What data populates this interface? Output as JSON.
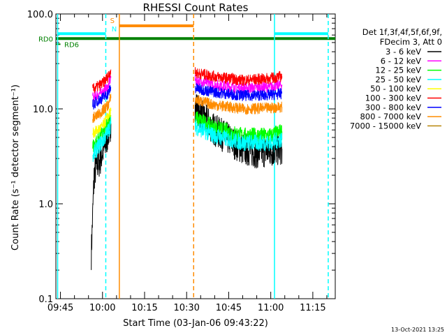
{
  "chart_data": {
    "type": "line",
    "title": "RHESSI Count Rates",
    "xlabel": "Start Time (03-Jan-06 09:43:22)",
    "ylabel": "Count Rate (s⁻¹ detector segment⁻¹)",
    "yscale": "log",
    "ylim": [
      0.1,
      100.0
    ],
    "xlim": [
      "09:43:22",
      "11:23:00"
    ],
    "x_tick_labels": [
      "09:45",
      "10:00",
      "10:15",
      "10:30",
      "10:45",
      "11:00",
      "11:15"
    ],
    "y_tick_labels": [
      "0.1",
      "1.0",
      "10.0",
      "100.0"
    ],
    "y_tick_values": [
      0.1,
      1.0,
      10.0,
      100.0
    ],
    "legend_header": [
      "Det 1f,3f,4f,5f,6f,9f,",
      "FDecim 3, Att 0"
    ],
    "legend_position": "right",
    "series": [
      {
        "name": "3 - 6 keV",
        "color": "#000000",
        "x": [
          "09:56:00",
          "09:57:00",
          "09:58:00",
          "09:59:00",
          "10:00:00",
          "10:01:00",
          "10:02:00",
          "10:03:00",
          "10:33:00",
          "10:36:00",
          "10:40:00",
          "10:45:00",
          "10:50:00",
          "10:55:00",
          "11:00:00",
          "11:04:00"
        ],
        "values": [
          0.3,
          2.0,
          2.6,
          2.8,
          3.5,
          4.2,
          5.5,
          7.0,
          11.0,
          8.0,
          6.0,
          4.8,
          3.8,
          3.5,
          3.6,
          3.8
        ]
      },
      {
        "name": "6 - 12 keV",
        "color": "#ff00ff",
        "x": [
          "09:56:30",
          "09:58:00",
          "10:00:00",
          "10:02:00",
          "10:03:00",
          "10:33:00",
          "10:40:00",
          "10:50:00",
          "11:00:00",
          "11:04:00"
        ],
        "values": [
          13.0,
          14.0,
          15.0,
          17.0,
          22.0,
          20.0,
          18.0,
          16.5,
          17.0,
          18.0
        ]
      },
      {
        "name": "12 - 25 keV",
        "color": "#00ff00",
        "x": [
          "09:56:30",
          "09:58:00",
          "10:00:00",
          "10:02:00",
          "10:03:00",
          "10:33:00",
          "10:40:00",
          "10:50:00",
          "11:00:00",
          "11:04:00"
        ],
        "values": [
          4.0,
          4.5,
          5.5,
          7.0,
          8.5,
          8.0,
          6.3,
          5.2,
          5.2,
          5.8
        ]
      },
      {
        "name": "25 - 50 keV",
        "color": "#00ffff",
        "x": [
          "09:56:30",
          "09:58:00",
          "10:00:00",
          "10:02:00",
          "10:03:00",
          "10:33:00",
          "10:40:00",
          "10:50:00",
          "11:00:00",
          "11:04:00"
        ],
        "values": [
          3.2,
          3.8,
          4.6,
          5.8,
          7.0,
          6.5,
          5.2,
          4.4,
          4.4,
          4.8
        ]
      },
      {
        "name": "50 - 100 keV",
        "color": "#ffff00",
        "x": [
          "09:56:30",
          "10:00:00",
          "10:03:00",
          "10:33:00",
          "10:50:00",
          "11:04:00"
        ],
        "values": [
          5.5,
          6.5,
          9.5,
          9.0,
          7.5,
          8.0
        ]
      },
      {
        "name": "100 - 300 keV",
        "color": "#ff0000",
        "x": [
          "09:56:30",
          "09:58:00",
          "10:00:00",
          "10:02:00",
          "10:03:00",
          "10:33:00",
          "10:40:00",
          "10:50:00",
          "11:00:00",
          "11:04:00"
        ],
        "values": [
          16.0,
          17.0,
          18.5,
          22.0,
          26.0,
          24.0,
          22.0,
          20.0,
          21.0,
          22.0
        ]
      },
      {
        "name": "300 - 800 keV",
        "color": "#0000ff",
        "x": [
          "09:56:30",
          "09:58:00",
          "10:00:00",
          "10:02:00",
          "10:03:00",
          "10:33:00",
          "10:40:00",
          "10:50:00",
          "11:00:00",
          "11:04:00"
        ],
        "values": [
          11.0,
          12.0,
          13.0,
          14.5,
          17.0,
          16.5,
          15.0,
          13.8,
          14.0,
          14.5
        ]
      },
      {
        "name": "800 - 7000 keV",
        "color": "#ff8c00",
        "x": [
          "09:56:30",
          "09:58:00",
          "10:00:00",
          "10:02:00",
          "10:03:00",
          "10:33:00",
          "10:40:00",
          "10:50:00",
          "11:00:00",
          "11:04:00"
        ],
        "values": [
          8.0,
          8.5,
          9.5,
          11.0,
          13.0,
          12.5,
          11.0,
          10.0,
          10.2,
          10.5
        ]
      },
      {
        "name": "7000 - 15000 keV",
        "color": "#b8860b",
        "x": [],
        "values": []
      }
    ],
    "annotations": [
      {
        "text": "RD0",
        "color": "#008000"
      },
      {
        "text": "RD6",
        "color": "#008000"
      },
      {
        "text": "S",
        "color": "#ff8c00"
      },
      {
        "text": "N",
        "color": "#00ffff"
      }
    ],
    "bars": [
      {
        "label": "RD0",
        "color": "#008000",
        "x_start": "09:43:22",
        "x_end": "11:23:00",
        "y": 55
      },
      {
        "label": "RD6",
        "color": "#008000",
        "x_start": "09:43:22",
        "x_end": "09:45:00",
        "y": 48
      },
      {
        "label": "N",
        "color": "#00ffff",
        "x_start": "09:44:00",
        "x_end": "10:01:10",
        "y": 62
      },
      {
        "label": "N",
        "color": "#00ffff",
        "x_start": "11:01:20",
        "x_end": "11:20:30",
        "y": 62
      },
      {
        "label": "S",
        "color": "#ff8c00",
        "x_start": "10:06:00",
        "x_end": "10:32:30",
        "y": 75
      }
    ],
    "vlines": [
      {
        "x": "09:44:00",
        "color": "#00ffff",
        "style": "solid"
      },
      {
        "x": "10:01:10",
        "color": "#00ffff",
        "style": "dashed"
      },
      {
        "x": "10:06:00",
        "color": "#ff8c00",
        "style": "solid"
      },
      {
        "x": "10:32:30",
        "color": "#ff8c00",
        "style": "dashed"
      },
      {
        "x": "11:01:20",
        "color": "#00ffff",
        "style": "solid"
      },
      {
        "x": "11:20:30",
        "color": "#00ffff",
        "style": "dashed"
      }
    ],
    "footer_timestamp": "13-Oct-2021 13:25"
  }
}
